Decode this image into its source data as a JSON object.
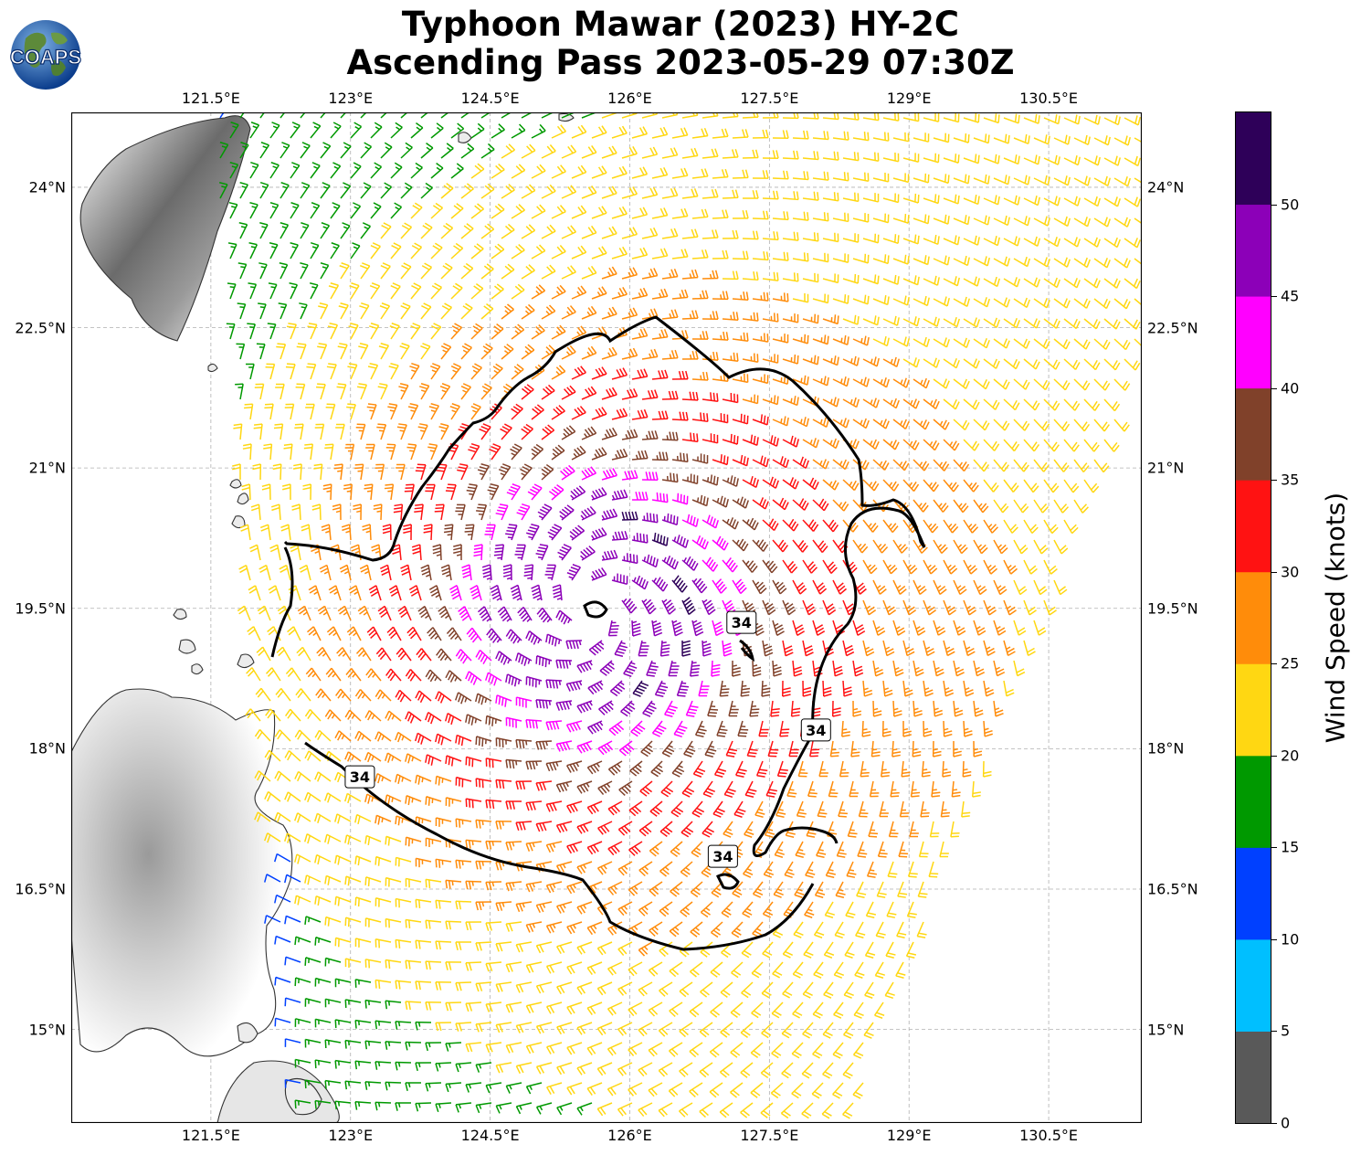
{
  "header": {
    "title_line1": "Typhoon Mawar (2023) HY-2C",
    "title_line2": "Ascending Pass 2023-05-29 07:30Z",
    "logo_text": "COAPS"
  },
  "map": {
    "lon_range": [
      120.0,
      131.5
    ],
    "lat_range": [
      14.0,
      24.8
    ],
    "lon_ticks": [
      "121.5°E",
      "123°E",
      "124.5°E",
      "126°E",
      "127.5°E",
      "129°E",
      "130.5°E"
    ],
    "lat_ticks": [
      "24°N",
      "22.5°N",
      "21°N",
      "19.5°N",
      "18°N",
      "16.5°N",
      "15°N"
    ],
    "lon_tick_values": [
      121.5,
      123,
      124.5,
      126,
      127.5,
      129,
      130.5
    ],
    "lat_tick_values": [
      24,
      22.5,
      21,
      19.5,
      18,
      16.5,
      15
    ],
    "storm_center": [
      125.6,
      19.5
    ],
    "contour_level": "34",
    "contour_label_positions": [
      [
        123.1,
        17.7
      ],
      [
        127.2,
        19.35
      ],
      [
        128.0,
        18.2
      ],
      [
        127.0,
        16.85
      ]
    ],
    "gridlines": true
  },
  "colorbar": {
    "label": "Wind Speed (knots)",
    "ticks": [
      "0",
      "5",
      "10",
      "15",
      "20",
      "25",
      "30",
      "35",
      "40",
      "45",
      "50"
    ],
    "bins": [
      {
        "min": 0,
        "max": 5,
        "color": "#595959"
      },
      {
        "min": 5,
        "max": 10,
        "color": "#00bfff"
      },
      {
        "min": 10,
        "max": 15,
        "color": "#0040ff"
      },
      {
        "min": 15,
        "max": 20,
        "color": "#009900"
      },
      {
        "min": 20,
        "max": 25,
        "color": "#ffd712"
      },
      {
        "min": 25,
        "max": 30,
        "color": "#ff8c0a"
      },
      {
        "min": 30,
        "max": 35,
        "color": "#ff1212"
      },
      {
        "min": 35,
        "max": 40,
        "color": "#80412a"
      },
      {
        "min": 40,
        "max": 45,
        "color": "#ff00ff"
      },
      {
        "min": 45,
        "max": 50,
        "color": "#8c00b8"
      },
      {
        "min": 50,
        "max": 55,
        "color": "#2e0059"
      }
    ]
  }
}
